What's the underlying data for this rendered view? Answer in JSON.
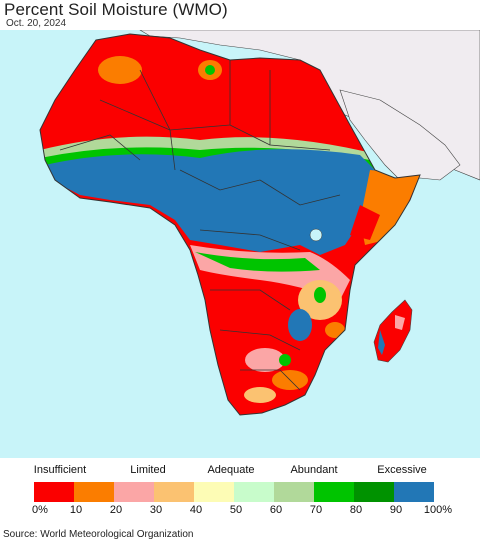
{
  "title": "Percent Soil Moisture (WMO)",
  "date": "Oct. 20, 2024",
  "legend": {
    "categories": [
      "Insufficient",
      "Limited",
      "Adequate",
      "Abundant",
      "Excessive"
    ],
    "ticks": [
      "0%",
      "10",
      "20",
      "30",
      "40",
      "50",
      "60",
      "70",
      "80",
      "90",
      "100%"
    ],
    "colors": [
      "#fb0000",
      "#fb7d00",
      "#fba6a6",
      "#fbc271",
      "#fdfcb5",
      "#c8fccb",
      "#b1d99a",
      "#00c400",
      "#009200",
      "#2277b6"
    ]
  },
  "map_colors": {
    "ocean": "#c8f4f9",
    "land_other": "#f0ecf0",
    "border": "#333333"
  },
  "source": "Source: World Meteorological Organization"
}
